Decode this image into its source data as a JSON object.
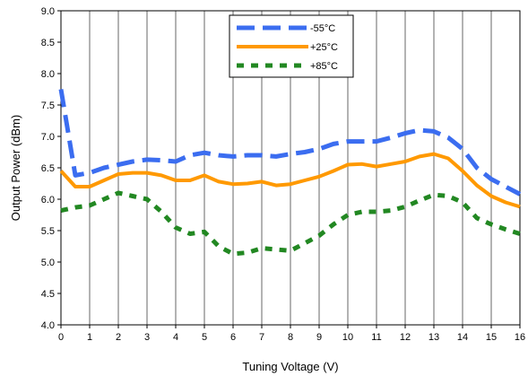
{
  "chart_data": {
    "type": "line",
    "xlabel": "Tuning Voltage (V)",
    "ylabel": "Output Power (dBm)",
    "xlim": [
      0,
      16
    ],
    "ylim": [
      4.0,
      9.0
    ],
    "x_ticks": [
      "0",
      "1",
      "2",
      "3",
      "4",
      "5",
      "6",
      "7",
      "8",
      "9",
      "10",
      "11",
      "12",
      "13",
      "14",
      "15",
      "16"
    ],
    "y_ticks": [
      "4.0",
      "4.5",
      "5.0",
      "5.5",
      "6.0",
      "6.5",
      "7.0",
      "7.5",
      "8.0",
      "8.5",
      "9.0"
    ],
    "grid": "vertical",
    "legend_position": "top-center",
    "series": [
      {
        "name": "-55°C",
        "color": "#3b6df0",
        "style": "long-dash",
        "x": [
          0,
          0.5,
          1,
          1.5,
          2,
          2.5,
          3,
          3.5,
          4,
          4.5,
          5,
          5.5,
          6,
          6.5,
          7,
          7.5,
          8,
          8.5,
          9,
          9.5,
          10,
          10.5,
          11,
          11.5,
          12,
          12.5,
          13,
          13.5,
          14,
          14.5,
          15,
          15.5,
          16
        ],
        "values": [
          7.75,
          6.38,
          6.42,
          6.5,
          6.55,
          6.6,
          6.63,
          6.62,
          6.6,
          6.7,
          6.74,
          6.7,
          6.68,
          6.7,
          6.7,
          6.68,
          6.72,
          6.75,
          6.8,
          6.88,
          6.92,
          6.92,
          6.92,
          6.98,
          7.05,
          7.1,
          7.08,
          6.98,
          6.8,
          6.5,
          6.32,
          6.2,
          6.08
        ]
      },
      {
        "name": "+25°C",
        "color": "#ff9900",
        "style": "solid",
        "x": [
          0,
          0.5,
          1,
          1.5,
          2,
          2.5,
          3,
          3.5,
          4,
          4.5,
          5,
          5.5,
          6,
          6.5,
          7,
          7.5,
          8,
          8.5,
          9,
          9.5,
          10,
          10.5,
          11,
          11.5,
          12,
          12.5,
          13,
          13.5,
          14,
          14.5,
          15,
          15.5,
          16
        ],
        "values": [
          6.45,
          6.2,
          6.2,
          6.3,
          6.4,
          6.42,
          6.42,
          6.38,
          6.3,
          6.3,
          6.38,
          6.28,
          6.24,
          6.25,
          6.28,
          6.22,
          6.24,
          6.3,
          6.36,
          6.45,
          6.55,
          6.56,
          6.52,
          6.56,
          6.6,
          6.68,
          6.72,
          6.65,
          6.45,
          6.22,
          6.05,
          5.95,
          5.88
        ]
      },
      {
        "name": "+85°C",
        "color": "#228822",
        "style": "short-dash",
        "x": [
          0,
          0.5,
          1,
          1.5,
          2,
          2.5,
          3,
          3.5,
          4,
          4.5,
          5,
          5.5,
          6,
          6.5,
          7,
          7.5,
          8,
          8.5,
          9,
          9.5,
          10,
          10.5,
          11,
          11.5,
          12,
          12.5,
          13,
          13.5,
          14,
          14.5,
          15,
          15.5,
          16
        ],
        "values": [
          5.82,
          5.87,
          5.9,
          6.0,
          6.1,
          6.05,
          6.0,
          5.8,
          5.55,
          5.45,
          5.48,
          5.25,
          5.13,
          5.15,
          5.22,
          5.2,
          5.18,
          5.3,
          5.42,
          5.6,
          5.75,
          5.8,
          5.8,
          5.82,
          5.88,
          5.98,
          6.07,
          6.05,
          5.95,
          5.7,
          5.6,
          5.52,
          5.45
        ]
      }
    ]
  }
}
